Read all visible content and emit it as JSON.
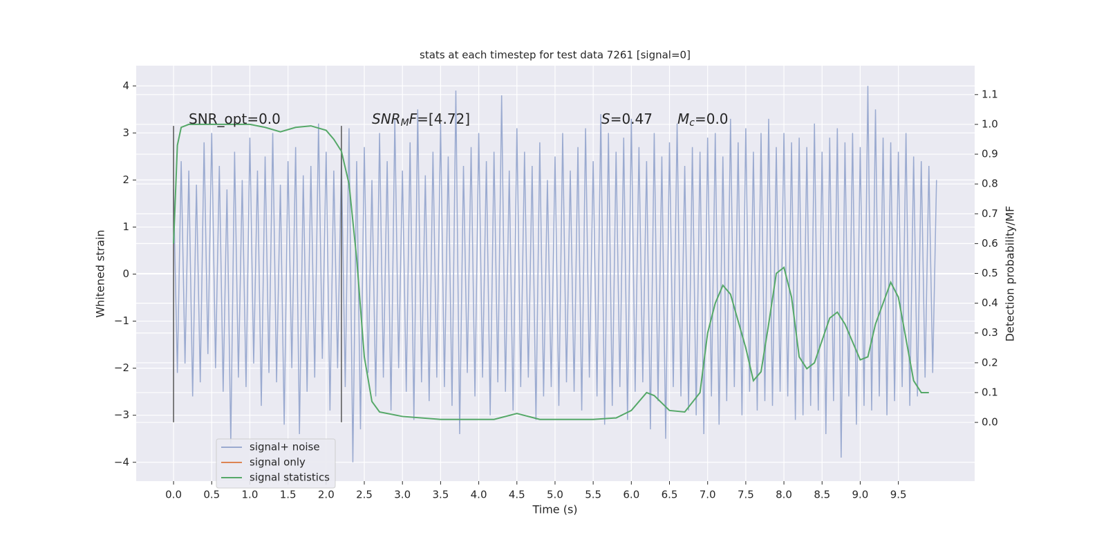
{
  "chart_data": {
    "type": "line",
    "title": "stats at each timestep for test data 7261 [signal=0]",
    "xlabel": "Time (s)",
    "ylabel": "Whitened strain",
    "y2label": "Detection probability/MF",
    "xlim": [
      -0.49,
      10.5
    ],
    "ylim": [
      -4.4,
      4.43
    ],
    "y2lim": [
      -0.197,
      1.197
    ],
    "xticks": [
      {
        "value": 0,
        "label": "0.0"
      },
      {
        "value": 0.5,
        "label": "0.5"
      },
      {
        "value": 1,
        "label": "1.0"
      },
      {
        "value": 1.5,
        "label": "1.5"
      },
      {
        "value": 2,
        "label": "2.0"
      },
      {
        "value": 2.5,
        "label": "2.5"
      },
      {
        "value": 3,
        "label": "3.0"
      },
      {
        "value": 3.5,
        "label": "3.5"
      },
      {
        "value": 4,
        "label": "4.0"
      },
      {
        "value": 4.5,
        "label": "4.5"
      },
      {
        "value": 5,
        "label": "5.0"
      },
      {
        "value": 5.5,
        "label": "5.5"
      },
      {
        "value": 6,
        "label": "6.0"
      },
      {
        "value": 6.5,
        "label": "6.5"
      },
      {
        "value": 7,
        "label": "7.0"
      },
      {
        "value": 7.5,
        "label": "7.5"
      },
      {
        "value": 8,
        "label": "8.0"
      },
      {
        "value": 8.5,
        "label": "8.5"
      },
      {
        "value": 9,
        "label": "9.0"
      },
      {
        "value": 9.5,
        "label": "9.5"
      }
    ],
    "yticks": [
      {
        "value": -4,
        "label": "−4"
      },
      {
        "value": -3,
        "label": "−3"
      },
      {
        "value": -2,
        "label": "−2"
      },
      {
        "value": -1,
        "label": "−1"
      },
      0,
      1,
      2,
      3,
      4
    ],
    "y2ticks": [
      {
        "value": 0,
        "label": "0.0"
      },
      {
        "value": 0.1,
        "label": "0.1"
      },
      {
        "value": 0.2,
        "label": "0.2"
      },
      {
        "value": 0.3,
        "label": "0.3"
      },
      {
        "value": 0.4,
        "label": "0.4"
      },
      {
        "value": 0.5,
        "label": "0.5"
      },
      {
        "value": 0.6,
        "label": "0.6"
      },
      {
        "value": 0.7,
        "label": "0.7"
      },
      {
        "value": 0.8,
        "label": "0.8"
      },
      {
        "value": 0.9,
        "label": "0.9"
      },
      {
        "value": 1,
        "label": "1.0"
      },
      {
        "value": 1.1,
        "label": "1.1"
      }
    ],
    "grid": true,
    "legend": "lower left",
    "vlines": {
      "x": [
        0,
        2.2
      ],
      "ymin": -3.15,
      "ymax": 3.15,
      "color": "#555555"
    },
    "annotations": [
      [
        {
          "text": "SNR_opt=0.0",
          "style": "normal"
        }
      ],
      [
        {
          "text": "SNR",
          "style": "italic"
        },
        {
          "text": "M",
          "style": "sub"
        },
        {
          "text": "F",
          "style": "italic"
        },
        {
          "text": "=[4.72]",
          "style": "normal"
        }
      ],
      [
        {
          "text": "S",
          "style": "italic"
        },
        {
          "text": "=0.47",
          "style": "normal"
        }
      ],
      [
        {
          "text": "M",
          "style": "italic"
        },
        {
          "text": "c",
          "style": "sub"
        },
        {
          "text": "=0.0",
          "style": "normal"
        }
      ]
    ],
    "series": [
      {
        "name": "signal+ noise",
        "color": "#9aaad0",
        "axis": "y",
        "x": [
          0,
          0.05,
          0.1,
          0.15,
          0.2,
          0.25,
          0.3,
          0.35,
          0.4,
          0.45,
          0.5,
          0.55,
          0.6,
          0.65,
          0.7,
          0.75,
          0.8,
          0.85,
          0.9,
          0.95,
          1,
          1.05,
          1.1,
          1.15,
          1.2,
          1.25,
          1.3,
          1.35,
          1.4,
          1.45,
          1.5,
          1.55,
          1.6,
          1.65,
          1.7,
          1.75,
          1.8,
          1.85,
          1.9,
          1.95,
          2,
          2.05,
          2.1,
          2.15,
          2.2,
          2.25,
          2.3,
          2.35,
          2.4,
          2.45,
          2.5,
          2.55,
          2.6,
          2.65,
          2.7,
          2.75,
          2.8,
          2.85,
          2.9,
          2.95,
          3,
          3.05,
          3.1,
          3.15,
          3.2,
          3.25,
          3.3,
          3.35,
          3.4,
          3.45,
          3.5,
          3.55,
          3.6,
          3.65,
          3.7,
          3.75,
          3.8,
          3.85,
          3.9,
          3.95,
          4,
          4.05,
          4.1,
          4.15,
          4.2,
          4.25,
          4.3,
          4.35,
          4.4,
          4.45,
          4.5,
          4.55,
          4.6,
          4.65,
          4.7,
          4.75,
          4.8,
          4.85,
          4.9,
          4.95,
          5,
          5.05,
          5.1,
          5.15,
          5.2,
          5.25,
          5.3,
          5.35,
          5.4,
          5.45,
          5.5,
          5.55,
          5.6,
          5.65,
          5.7,
          5.75,
          5.8,
          5.85,
          5.9,
          5.95,
          6,
          6.05,
          6.1,
          6.15,
          6.2,
          6.25,
          6.3,
          6.35,
          6.4,
          6.45,
          6.5,
          6.55,
          6.6,
          6.65,
          6.7,
          6.75,
          6.8,
          6.85,
          6.9,
          6.95,
          7,
          7.05,
          7.1,
          7.15,
          7.2,
          7.25,
          7.3,
          7.35,
          7.4,
          7.45,
          7.5,
          7.55,
          7.6,
          7.65,
          7.7,
          7.75,
          7.8,
          7.85,
          7.9,
          7.95,
          8,
          8.05,
          8.1,
          8.15,
          8.2,
          8.25,
          8.3,
          8.35,
          8.4,
          8.45,
          8.5,
          8.55,
          8.6,
          8.65,
          8.7,
          8.75,
          8.8,
          8.85,
          8.9,
          8.95,
          9,
          9.05,
          9.1,
          9.15,
          9.2,
          9.25,
          9.3,
          9.35,
          9.4,
          9.45,
          9.5,
          9.55,
          9.6,
          9.65,
          9.7,
          9.75,
          9.8,
          9.85,
          9.9,
          9.95,
          10
        ],
        "values": [
          1.8,
          -2.1,
          2.4,
          -1.9,
          2.2,
          -2.6,
          1.9,
          -2.3,
          2.8,
          -1.7,
          3.0,
          -2.0,
          2.3,
          -2.5,
          1.8,
          -3.6,
          2.6,
          -2.2,
          2.0,
          -2.4,
          2.9,
          -1.9,
          2.2,
          -2.8,
          2.5,
          -2.1,
          3.0,
          -2.3,
          1.9,
          -3.2,
          2.4,
          -2.0,
          2.7,
          -3.4,
          2.1,
          -2.5,
          2.3,
          -2.2,
          3.2,
          -1.8,
          2.6,
          -2.9,
          2.2,
          -2.0,
          2.5,
          -2.4,
          3.1,
          -4.0,
          2.4,
          -3.3,
          2.7,
          -2.1,
          2.0,
          -2.6,
          3.0,
          -2.2,
          2.4,
          -2.9,
          3.3,
          -2.0,
          2.2,
          -2.5,
          2.8,
          -3.1,
          3.5,
          -2.3,
          2.1,
          -2.7,
          2.6,
          -2.2,
          3.2,
          -2.4,
          2.5,
          -2.8,
          3.9,
          -3.4,
          2.3,
          -2.1,
          2.7,
          -2.6,
          3.0,
          -2.2,
          2.4,
          -3.0,
          2.6,
          -2.3,
          3.8,
          -2.5,
          2.2,
          -2.9,
          3.1,
          -2.4,
          2.6,
          -2.2,
          2.3,
          -3.1,
          2.8,
          -2.6,
          2.0,
          -2.4,
          2.5,
          -2.8,
          3.0,
          -2.3,
          2.2,
          -2.5,
          2.7,
          -2.9,
          3.1,
          -2.2,
          2.4,
          -2.6,
          3.4,
          -3.2,
          3.0,
          -2.8,
          2.6,
          -2.4,
          2.9,
          -3.1,
          3.3,
          -2.5,
          2.7,
          -2.3,
          2.4,
          -3.3,
          3.0,
          -2.7,
          2.5,
          -3.5,
          2.8,
          -2.4,
          3.2,
          -2.6,
          2.3,
          -2.9,
          2.7,
          -3.0,
          2.6,
          -3.4,
          2.9,
          -2.6,
          3.0,
          -3.2,
          2.5,
          -2.7,
          3.3,
          -2.4,
          2.8,
          -3.0,
          3.1,
          -2.5,
          2.6,
          -2.9,
          3.0,
          -2.7,
          3.3,
          -2.8,
          2.7,
          -2.5,
          3.0,
          -2.6,
          2.8,
          -3.1,
          2.9,
          -3.0,
          2.7,
          -2.8,
          3.2,
          -2.9,
          2.6,
          -3.4,
          2.9,
          -2.7,
          3.1,
          -3.9,
          2.8,
          -2.6,
          3.0,
          -3.2,
          2.7,
          -2.8,
          4.0,
          -2.9,
          3.5,
          -2.6,
          2.9,
          -3.0,
          2.8,
          -2.7,
          2.6,
          -2.4,
          3.0,
          -2.8,
          2.5,
          -2.6,
          2.4,
          -2.2,
          2.3,
          -2.1,
          2.0
        ]
      },
      {
        "name": "signal only",
        "color": "#dd8452",
        "axis": "y",
        "x": [],
        "values": []
      },
      {
        "name": "signal statistics",
        "color": "#55a868",
        "axis": "y2",
        "x": [
          0,
          0.05,
          0.1,
          0.2,
          0.4,
          0.6,
          0.8,
          1.0,
          1.2,
          1.4,
          1.6,
          1.8,
          2.0,
          2.1,
          2.2,
          2.3,
          2.4,
          2.5,
          2.6,
          2.7,
          2.8,
          3.0,
          3.5,
          4.0,
          4.2,
          4.5,
          4.8,
          5.0,
          5.5,
          5.8,
          6.0,
          6.2,
          6.3,
          6.5,
          6.7,
          6.9,
          7.0,
          7.1,
          7.2,
          7.3,
          7.5,
          7.6,
          7.7,
          7.8,
          7.9,
          8.0,
          8.1,
          8.2,
          8.3,
          8.4,
          8.6,
          8.7,
          8.8,
          9.0,
          9.1,
          9.2,
          9.4,
          9.5,
          9.6,
          9.7,
          9.8,
          9.9
        ],
        "values": [
          0.6,
          0.93,
          0.99,
          1.0,
          1.0,
          1.0,
          1.0,
          1.0,
          0.99,
          0.975,
          0.99,
          0.995,
          0.98,
          0.95,
          0.91,
          0.8,
          0.55,
          0.22,
          0.07,
          0.035,
          0.03,
          0.02,
          0.01,
          0.01,
          0.01,
          0.03,
          0.01,
          0.01,
          0.01,
          0.015,
          0.04,
          0.1,
          0.09,
          0.04,
          0.035,
          0.1,
          0.3,
          0.4,
          0.46,
          0.43,
          0.25,
          0.14,
          0.17,
          0.33,
          0.5,
          0.52,
          0.42,
          0.22,
          0.18,
          0.2,
          0.35,
          0.37,
          0.33,
          0.21,
          0.22,
          0.33,
          0.47,
          0.42,
          0.28,
          0.14,
          0.1,
          0.1
        ]
      }
    ]
  }
}
